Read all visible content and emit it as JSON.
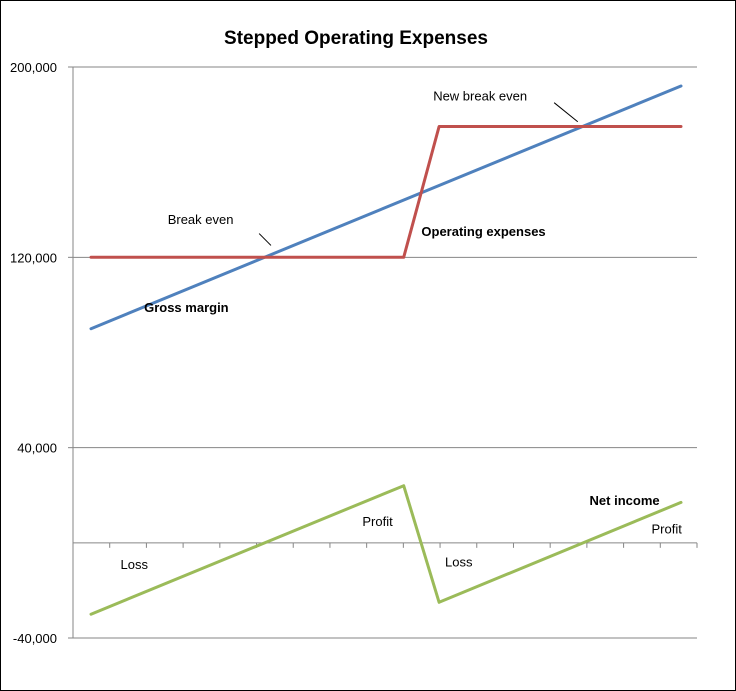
{
  "chart_data": {
    "type": "line",
    "title": "Stepped Operating Expenses",
    "xlabel": "",
    "ylabel": "",
    "ylim": [
      -40000,
      200000
    ],
    "xlim": [
      0,
      100
    ],
    "yticks": [
      {
        "value": 200000,
        "label": "200,000"
      },
      {
        "value": 120000,
        "label": "120,000"
      },
      {
        "value": 40000,
        "label": "40,000"
      },
      {
        "value": -40000,
        "label": "-40,000"
      }
    ],
    "grid": true,
    "x_minor_ticks": 17,
    "series": [
      {
        "key": "gross_margin",
        "color": "#4f81bd",
        "points": [
          {
            "x": 0,
            "y": 90000
          },
          {
            "x": 100,
            "y": 192000
          }
        ]
      },
      {
        "key": "operating_expenses",
        "color": "#c0504d",
        "points": [
          {
            "x": 0,
            "y": 120000
          },
          {
            "x": 53,
            "y": 120000
          },
          {
            "x": 59,
            "y": 175000
          },
          {
            "x": 100,
            "y": 175000
          }
        ]
      },
      {
        "key": "net_income",
        "color": "#9bbb59",
        "points": [
          {
            "x": 0,
            "y": -30000
          },
          {
            "x": 53,
            "y": 24000
          },
          {
            "x": 59,
            "y": -25000
          },
          {
            "x": 100,
            "y": 17000
          }
        ]
      }
    ],
    "annotations": [
      {
        "key": "break_even",
        "text": "Break even",
        "bold": false,
        "x": 13,
        "y": 134000,
        "anchor": "start",
        "leader": [
          [
            28.5,
            130000
          ],
          [
            30.5,
            125000
          ]
        ]
      },
      {
        "key": "new_break_even",
        "text": "New break even",
        "bold": false,
        "x": 58,
        "y": 186000,
        "anchor": "start",
        "leader": [
          [
            78.5,
            185000
          ],
          [
            82.5,
            177000
          ]
        ]
      },
      {
        "key": "operating_expenses_label",
        "text": "Operating expenses",
        "bold": true,
        "x": 56,
        "y": 129000,
        "anchor": "start"
      },
      {
        "key": "gross_margin_label",
        "text": "Gross margin",
        "bold": true,
        "x": 9,
        "y": 97000,
        "anchor": "start"
      },
      {
        "key": "net_income_label",
        "text": "Net income",
        "bold": true,
        "x": 84.5,
        "y": 16000,
        "anchor": "start"
      },
      {
        "key": "loss_1",
        "text": "Loss",
        "bold": false,
        "x": 5,
        "y": -11000,
        "anchor": "start"
      },
      {
        "key": "profit_1",
        "text": "Profit",
        "bold": false,
        "x": 46,
        "y": 7000,
        "anchor": "start"
      },
      {
        "key": "loss_2",
        "text": "Loss",
        "bold": false,
        "x": 60,
        "y": -10000,
        "anchor": "start"
      },
      {
        "key": "profit_2",
        "text": "Profit",
        "bold": false,
        "x": 95,
        "y": 4000,
        "anchor": "start"
      }
    ]
  }
}
